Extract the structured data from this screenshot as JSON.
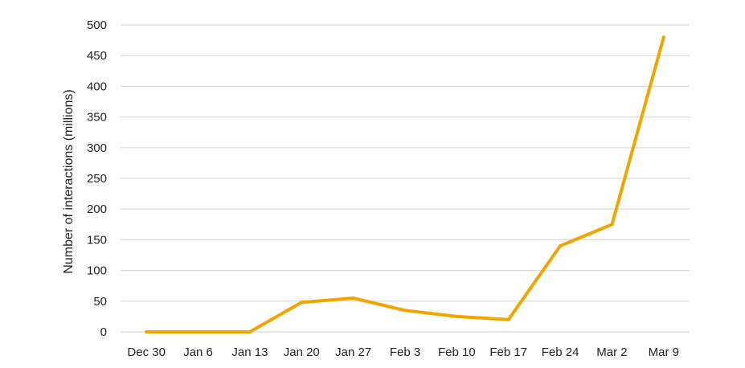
{
  "chart_data": {
    "type": "line",
    "title": "",
    "xlabel": "",
    "ylabel": "Number of interactions (millions)",
    "categories": [
      "Dec 30",
      "Jan 6",
      "Jan 13",
      "Jan 20",
      "Jan 27",
      "Feb 3",
      "Feb 10",
      "Feb 17",
      "Feb 24",
      "Mar 2",
      "Mar 9"
    ],
    "series": [
      {
        "values": [
          0,
          0,
          0,
          48,
          55,
          35,
          25,
          20,
          140,
          175,
          480
        ],
        "color": "#f0a500"
      }
    ],
    "ylim": [
      0,
      500
    ],
    "yticks": [
      0,
      50,
      100,
      150,
      200,
      250,
      300,
      350,
      400,
      450,
      500
    ],
    "grid": "horizontal",
    "legend": "none"
  }
}
